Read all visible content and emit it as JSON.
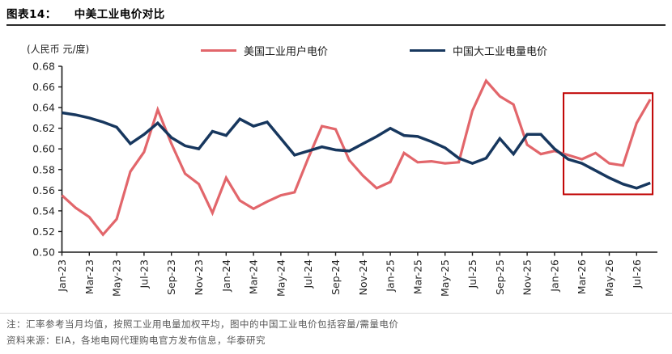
{
  "header": {
    "figure_label": "图表14：",
    "title": "中美工业电价对比"
  },
  "legend": {
    "us_label": "美国工业用户电价",
    "cn_label": "中国大工业电量电价"
  },
  "colors": {
    "us_line": "#E2666B",
    "cn_line": "#17375E",
    "highlight_box": "#C00000",
    "axis": "#1a1a1a",
    "tick_text": "#262626",
    "note_text": "#595959"
  },
  "chart_data": {
    "type": "line",
    "title": "中美工业电价对比",
    "unit_label": "(人民币 元/度)",
    "ylim": [
      0.5,
      0.68
    ],
    "ytick_labels": [
      "0.68",
      "0.66",
      "0.64",
      "0.62",
      "0.60",
      "0.58",
      "0.56",
      "0.54",
      "0.52",
      "0.50"
    ],
    "yticks": [
      0.68,
      0.66,
      0.64,
      0.62,
      0.6,
      0.58,
      0.56,
      0.54,
      0.52,
      0.5
    ],
    "grid": false,
    "legend_position": "top",
    "x": [
      "Jan-23",
      "Feb-23",
      "Mar-23",
      "Apr-23",
      "May-23",
      "Jun-23",
      "Jul-23",
      "Aug-23",
      "Sep-23",
      "Oct-23",
      "Nov-23",
      "Dec-23",
      "Jan-24",
      "Feb-24",
      "Mar-24",
      "Apr-24",
      "May-24",
      "Jun-24",
      "Jul-24",
      "Aug-24",
      "Sep-24",
      "Oct-24",
      "Nov-24",
      "Dec-24",
      "Jan-25",
      "Feb-25",
      "Mar-25",
      "Apr-25",
      "May-25",
      "Jun-25",
      "Jul-25",
      "Aug-25",
      "Sep-25",
      "Oct-25",
      "Nov-25",
      "Dec-25",
      "Jan-26",
      "Feb-26",
      "Mar-26",
      "Apr-26",
      "May-26",
      "Jun-26",
      "Jul-26",
      "Aug-26"
    ],
    "x_tick_labels": [
      "Jan-23",
      "Mar-23",
      "May-23",
      "Jul-23",
      "Sep-23",
      "Nov-23",
      "Jan-24",
      "Mar-24",
      "May-24",
      "Jul-24",
      "Sep-24",
      "Nov-24",
      "Jan-25",
      "Mar-25",
      "May-25",
      "Jul-25",
      "Sep-25",
      "Nov-25",
      "Jan-26",
      "Mar-26",
      "May-26",
      "Jul-26"
    ],
    "series": [
      {
        "name": "美国工业用户电价",
        "color": "#E2666B",
        "values": [
          0.555,
          0.543,
          0.534,
          0.517,
          0.532,
          0.578,
          0.597,
          0.638,
          0.605,
          0.576,
          0.566,
          0.538,
          0.572,
          0.55,
          0.542,
          0.549,
          0.555,
          0.558,
          0.591,
          0.622,
          0.619,
          0.589,
          0.574,
          0.562,
          0.568,
          0.596,
          0.587,
          0.588,
          0.586,
          0.587,
          0.637,
          0.666,
          0.651,
          0.643,
          0.604,
          0.595,
          0.598,
          0.594,
          0.59,
          0.596,
          0.586,
          0.584,
          0.625,
          0.648
        ]
      },
      {
        "name": "中国大工业电量电价",
        "color": "#17375E",
        "values": [
          0.635,
          0.633,
          0.63,
          0.626,
          0.621,
          0.605,
          0.614,
          0.625,
          0.611,
          0.603,
          0.6,
          0.617,
          0.613,
          0.629,
          0.622,
          0.626,
          0.61,
          0.594,
          0.598,
          0.602,
          0.599,
          0.598,
          0.605,
          0.612,
          0.62,
          0.613,
          0.612,
          0.607,
          0.601,
          0.591,
          0.586,
          0.591,
          0.61,
          0.595,
          0.614,
          0.614,
          0.6,
          0.59,
          0.586,
          0.579,
          0.572,
          0.566,
          0.562,
          0.567
        ]
      }
    ],
    "highlight_box": {
      "from_month": "Feb-26",
      "to_month": "Aug-26",
      "from_index": 36.66,
      "to_index": 43.17,
      "value_low": 0.556,
      "value_high": 0.654,
      "color": "#C00000"
    }
  },
  "notes": {
    "line1": "注：汇率参考当月均值，按照工业用电量加权平均，图中的中国工业电价包括容量/需量电价",
    "line2": "资料来源：EIA，各地电网代理购电官方发布信息，华泰研究"
  }
}
